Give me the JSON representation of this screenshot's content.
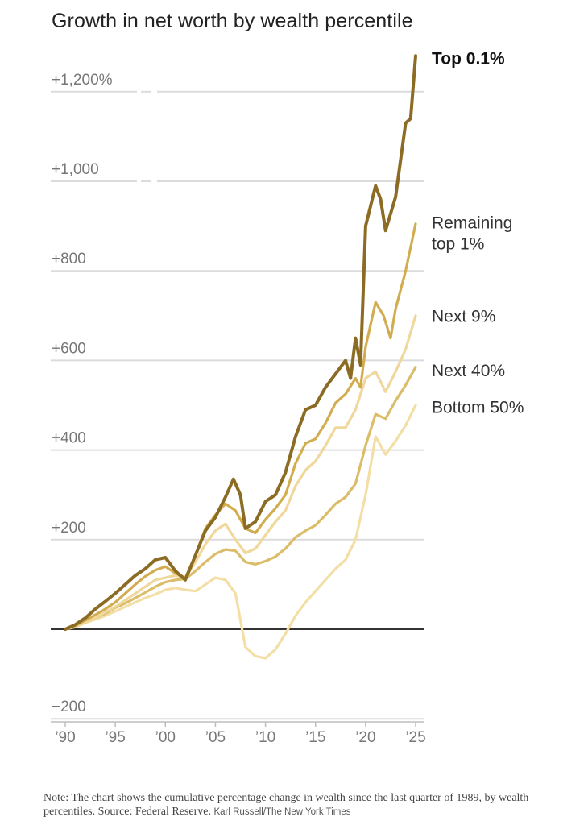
{
  "chart_data": {
    "type": "line",
    "title": "Growth in net worth by wealth percentile",
    "xlabel": "",
    "ylabel": "",
    "xlim": [
      1989.75,
      2025.1
    ],
    "ylim": [
      -200,
      1200
    ],
    "x_ticks": [
      {
        "value": 1990,
        "label": "’90"
      },
      {
        "value": 1995,
        "label": "’95"
      },
      {
        "value": 2000,
        "label": "’00"
      },
      {
        "value": 2005,
        "label": "’05"
      },
      {
        "value": 2010,
        "label": "’10"
      },
      {
        "value": 2015,
        "label": "’15"
      },
      {
        "value": 2020,
        "label": "’20"
      },
      {
        "value": 2025,
        "label": "’25"
      }
    ],
    "y_ticks": [
      {
        "value": 1200,
        "label": "+1,200%"
      },
      {
        "value": 1000,
        "label": "+1,000"
      },
      {
        "value": 800,
        "label": "+800"
      },
      {
        "value": 600,
        "label": "+600"
      },
      {
        "value": 400,
        "label": "+400"
      },
      {
        "value": 200,
        "label": "+200"
      },
      {
        "value": -200,
        "label": "−200"
      }
    ],
    "zero_line": 0,
    "series": [
      {
        "name": "Bottom 50%",
        "label_lines": [
          "Bottom 50%"
        ],
        "color": "#f3dfa5",
        "x": [
          1990,
          1991,
          1992,
          1993,
          1994,
          1995,
          1996,
          1997,
          1998,
          1999,
          2000,
          2001,
          2002,
          2003,
          2004,
          2005,
          2006,
          2007,
          2008,
          2009,
          2010,
          2011,
          2012,
          2013,
          2014,
          2015,
          2016,
          2017,
          2018,
          2019,
          2020,
          2021,
          2022,
          2023,
          2024,
          2025
        ],
        "values": [
          0,
          5,
          15,
          22,
          30,
          40,
          50,
          60,
          70,
          78,
          88,
          92,
          88,
          85,
          100,
          115,
          110,
          80,
          -40,
          -60,
          -65,
          -45,
          -10,
          30,
          60,
          85,
          110,
          135,
          155,
          200,
          300,
          430,
          390,
          420,
          455,
          500
        ]
      },
      {
        "name": "Next 40%",
        "label_lines": [
          "Next 40%"
        ],
        "color": "#dbbd69",
        "x": [
          1990,
          1991,
          1992,
          1993,
          1994,
          1995,
          1996,
          1997,
          1998,
          1999,
          2000,
          2001,
          2002,
          2003,
          2004,
          2005,
          2006,
          2007,
          2008,
          2009,
          2010,
          2011,
          2012,
          2013,
          2014,
          2015,
          2016,
          2017,
          2018,
          2019,
          2020,
          2021,
          2022,
          2023,
          2024,
          2025
        ],
        "values": [
          0,
          5,
          15,
          25,
          35,
          48,
          58,
          70,
          82,
          95,
          105,
          110,
          112,
          130,
          150,
          168,
          178,
          175,
          150,
          145,
          152,
          162,
          180,
          205,
          220,
          232,
          255,
          280,
          295,
          325,
          410,
          480,
          470,
          510,
          545,
          585
        ]
      },
      {
        "name": "Next 9%",
        "label_lines": [
          "Next 9%"
        ],
        "color": "#f0d79a",
        "x": [
          1990,
          1991,
          1992,
          1993,
          1994,
          1995,
          1996,
          1997,
          1998,
          1999,
          2000,
          2001,
          2002,
          2003,
          2004,
          2005,
          2006,
          2007,
          2008,
          2009,
          2010,
          2011,
          2012,
          2013,
          2014,
          2015,
          2016,
          2017,
          2018,
          2019,
          2020,
          2021,
          2022,
          2023,
          2024,
          2025
        ],
        "values": [
          0,
          5,
          15,
          25,
          38,
          50,
          65,
          80,
          95,
          110,
          115,
          120,
          115,
          150,
          190,
          220,
          235,
          200,
          170,
          180,
          210,
          240,
          265,
          320,
          355,
          375,
          410,
          450,
          450,
          490,
          560,
          575,
          530,
          575,
          625,
          700
        ]
      },
      {
        "name": "Remaining top 1%",
        "label_lines": [
          "Remaining",
          "top 1%"
        ],
        "color": "#d2ad50",
        "x": [
          1990,
          1991,
          1992,
          1993,
          1994,
          1995,
          1996,
          1997,
          1998,
          1999,
          2000,
          2001,
          2002,
          2003,
          2004,
          2005,
          2006,
          2007,
          2008,
          2009,
          2010,
          2011,
          2012,
          2013,
          2014,
          2015,
          2016,
          2017,
          2018,
          2019,
          2019.5,
          2020,
          2021,
          2021.8,
          2022.5,
          2023,
          2024,
          2025
        ],
        "values": [
          0,
          8,
          20,
          32,
          45,
          60,
          80,
          100,
          118,
          132,
          140,
          125,
          115,
          165,
          225,
          255,
          280,
          265,
          225,
          215,
          245,
          270,
          300,
          370,
          415,
          425,
          460,
          505,
          525,
          560,
          540,
          630,
          730,
          700,
          650,
          715,
          800,
          905
        ]
      },
      {
        "name": "Top 0.1%",
        "label_lines": [
          "Top 0.1%"
        ],
        "color": "#8c6c24",
        "bold": true,
        "x": [
          1990,
          1991,
          1992,
          1993,
          1994,
          1995,
          1996,
          1997,
          1998,
          1999,
          2000,
          2001,
          2002,
          2003,
          2004,
          2005,
          2006,
          2006.8,
          2007.5,
          2008,
          2009,
          2010,
          2011,
          2012,
          2013,
          2014,
          2015,
          2016,
          2017,
          2018,
          2018.5,
          2019,
          2019.5,
          2020,
          2021,
          2021.5,
          2022,
          2023,
          2024,
          2024.5,
          2025
        ],
        "values": [
          0,
          10,
          25,
          45,
          62,
          80,
          100,
          120,
          135,
          155,
          160,
          130,
          110,
          165,
          220,
          250,
          295,
          335,
          300,
          225,
          240,
          285,
          300,
          350,
          430,
          490,
          500,
          540,
          570,
          600,
          560,
          650,
          590,
          900,
          990,
          960,
          890,
          965,
          1130,
          1140,
          1280
        ]
      }
    ],
    "label_annotations": [
      {
        "series": "Top 0.1%",
        "y": 1262
      },
      {
        "series": "Remaining top 1%",
        "y": 895
      },
      {
        "series": "Next 9%",
        "y": 686
      },
      {
        "series": "Next 40%",
        "y": 565
      },
      {
        "series": "Bottom 50%",
        "y": 483
      }
    ]
  },
  "footer": {
    "note": "Note: The chart shows the cumulative percentage change in wealth since the last quarter of 1989, by wealth percentiles.  Source: Federal Reserve.",
    "credit": "Karl Russell/The New York Times"
  }
}
